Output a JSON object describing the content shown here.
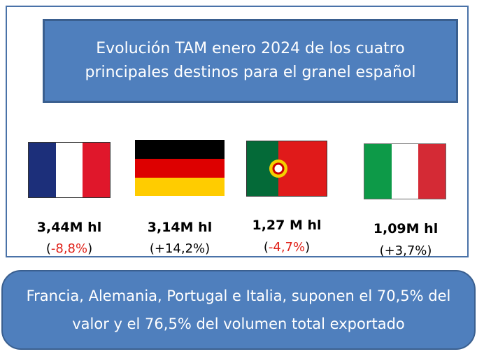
{
  "title": "Evolución TAM enero 2024 de los cuatro principales destinos para el granel español",
  "countries": [
    {
      "volume": "3,44M hl",
      "change": [
        "(",
        "-8,8%",
        ")"
      ]
    },
    {
      "volume": "3,14M hl",
      "change": [
        "(",
        "+14,2%",
        ")"
      ]
    },
    {
      "volume": "1,27 M hl",
      "change": [
        "(",
        "-4,7%",
        ")"
      ]
    },
    {
      "volume": "1,09M hl",
      "change": [
        "(",
        "+3,7%",
        ")"
      ]
    }
  ],
  "note": "Francia, Alemania, Portugal e Italia, suponen el 70,5% del valor y el 76,5% del volumen total exportado"
}
